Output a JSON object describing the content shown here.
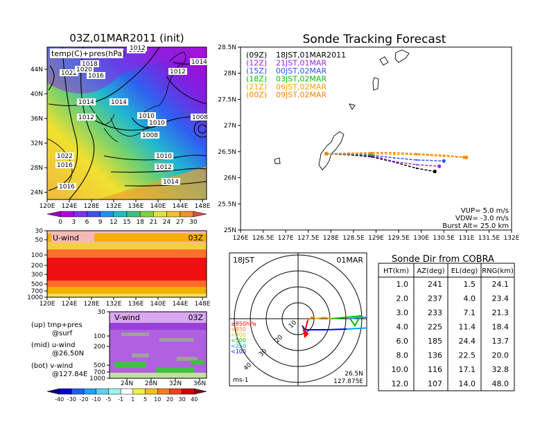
{
  "colors": {
    "series": [
      "#000000",
      "#a020f0",
      "#3050ff",
      "#00c000",
      "#ffa000",
      "#ff8000"
    ],
    "hodo_levels": [
      "#ff0000",
      "#ff8000",
      "#e0c000",
      "#00c000",
      "#00a0ff",
      "#0000ff"
    ]
  },
  "left_panel": {
    "title": "03Z,01MAR2011 (init)",
    "map_label": "temp(C)+pres(hPa)",
    "lat_ticks": [
      "44N",
      "40N",
      "36N",
      "32N",
      "28N",
      "24N"
    ],
    "lon_ticks": [
      "120E",
      "124E",
      "128E",
      "132E",
      "136E",
      "140E",
      "144E",
      "148E"
    ],
    "pressure_labels": [
      "1012",
      "1018",
      "1022",
      "1020",
      "1016",
      "1014",
      "1012",
      "1014",
      "1012",
      "1010",
      "1010",
      "1008",
      "1008",
      "1010",
      "1012",
      "1014",
      "1016",
      "1014",
      "1022",
      "1016",
      "1012"
    ],
    "temp_colorbar": [
      "0",
      "3",
      "6",
      "9",
      "12",
      "15",
      "18",
      "21",
      "24",
      "27",
      "30"
    ]
  },
  "u_panel": {
    "label": "U-wind",
    "time": "03Z",
    "y_ticks": [
      "30",
      "50",
      "100",
      "200",
      "300",
      "500",
      "700",
      "1000"
    ],
    "x_ticks": [
      "120E",
      "124E",
      "128E",
      "132E",
      "136E",
      "140E",
      "144E",
      "148E"
    ]
  },
  "v_panel": {
    "label": "V-wind",
    "time": "03Z",
    "y_ticks": [
      "30",
      "50",
      "100",
      "200",
      "300",
      "500",
      "700",
      "1000"
    ],
    "x_ticks": [
      "24N",
      "28N",
      "32N",
      "36N"
    ]
  },
  "notes": {
    "line1a": "(up) tmp+pres",
    "line1b": "@surf",
    "line2a": "(mid) u-wind",
    "line2b": "@26.50N",
    "line3a": "(bot) v-wind",
    "line3b": "@127.84E"
  },
  "wind_colorbar": [
    "-40",
    "-30",
    "-20",
    "-10",
    "-5",
    "-1",
    "1",
    "5",
    "10",
    "20",
    "30",
    "40"
  ],
  "chart_data": {
    "type": "line",
    "title": "Sonde Tracking Forecast",
    "x_ticks": [
      "126E",
      "126.5E",
      "127E",
      "127.5E",
      "128E",
      "128.5E",
      "129E",
      "129.5E",
      "130E",
      "130.5E",
      "131E",
      "131.5E",
      "132E"
    ],
    "y_ticks": [
      "28.5N",
      "28N",
      "27.5N",
      "27N",
      "26.5N",
      "26N",
      "25.5N",
      "25N"
    ],
    "xlim": [
      126,
      132
    ],
    "ylim": [
      25,
      28.5
    ],
    "legend": [
      {
        "code": "(09Z)",
        "time": "18JST,01MAR2011"
      },
      {
        "code": "(12Z)",
        "time": "21JST,01MAR"
      },
      {
        "code": "(15Z)",
        "time": "00JST,02MAR"
      },
      {
        "code": "(18Z)",
        "time": "03JST,02MAR"
      },
      {
        "code": "(21Z)",
        "time": "06JST,02MAR"
      },
      {
        "code": "(00Z)",
        "time": "09JST,02MAR"
      }
    ],
    "series": [
      {
        "x": [
          127.9,
          128.4,
          128.9,
          129.4,
          129.9,
          130.3
        ],
        "y": [
          26.46,
          26.44,
          26.4,
          26.3,
          26.18,
          26.12
        ]
      },
      {
        "x": [
          127.9,
          128.4,
          128.9,
          129.4,
          129.9,
          130.4
        ],
        "y": [
          26.46,
          26.45,
          26.42,
          26.31,
          26.25,
          26.22
        ]
      },
      {
        "x": [
          127.9,
          128.4,
          128.9,
          129.4,
          129.9,
          130.5
        ],
        "y": [
          26.46,
          26.45,
          26.43,
          26.38,
          26.34,
          26.32
        ]
      },
      {
        "x": [
          127.9,
          128.4,
          128.9
        ],
        "y": [
          26.46,
          26.46,
          26.45
        ]
      },
      {
        "x": [
          127.9,
          128.4,
          128.9,
          129.4,
          129.9,
          130.5,
          130.95
        ],
        "y": [
          26.46,
          26.46,
          26.46,
          26.45,
          26.44,
          26.41,
          26.39
        ]
      },
      {
        "x": [
          127.9,
          128.4,
          128.9,
          129.4,
          129.9,
          130.5,
          131.0
        ],
        "y": [
          26.46,
          26.47,
          26.48,
          26.48,
          26.46,
          26.43,
          26.39
        ]
      }
    ],
    "params": {
      "vup": "VUP=  5.0  m/s",
      "vdw": "VDW= -3.0  m/s",
      "burst": "Burst Alt=  25.0  km"
    }
  },
  "hodograph": {
    "time": "18JST",
    "date": "01MAR",
    "rings": [
      "10",
      "20",
      "30",
      "40"
    ],
    "level_labels": [
      "≥850hPa",
      "<850",
      "<700",
      "<500",
      "<250",
      "<100"
    ],
    "unit": "ms-1",
    "lat": "26.5N",
    "lon": "127.875E"
  },
  "sonde_table": {
    "title": "Sonde Dir from COBRA",
    "headers": [
      "HT(km)",
      "AZ(deg)",
      "EL(deg)",
      "RNG(km)"
    ],
    "rows": [
      [
        "1.0",
        "241",
        "1.5",
        "24.1"
      ],
      [
        "2.0",
        "237",
        "4.0",
        "23.4"
      ],
      [
        "3.0",
        "233",
        "7.1",
        "21.3"
      ],
      [
        "4.0",
        "225",
        "11.4",
        "18.4"
      ],
      [
        "6.0",
        "185",
        "24.4",
        "13.7"
      ],
      [
        "8.0",
        "136",
        "22.5",
        "20.0"
      ],
      [
        "10.0",
        "116",
        "17.1",
        "32.8"
      ],
      [
        "12.0",
        "107",
        "14.0",
        "48.0"
      ]
    ]
  }
}
